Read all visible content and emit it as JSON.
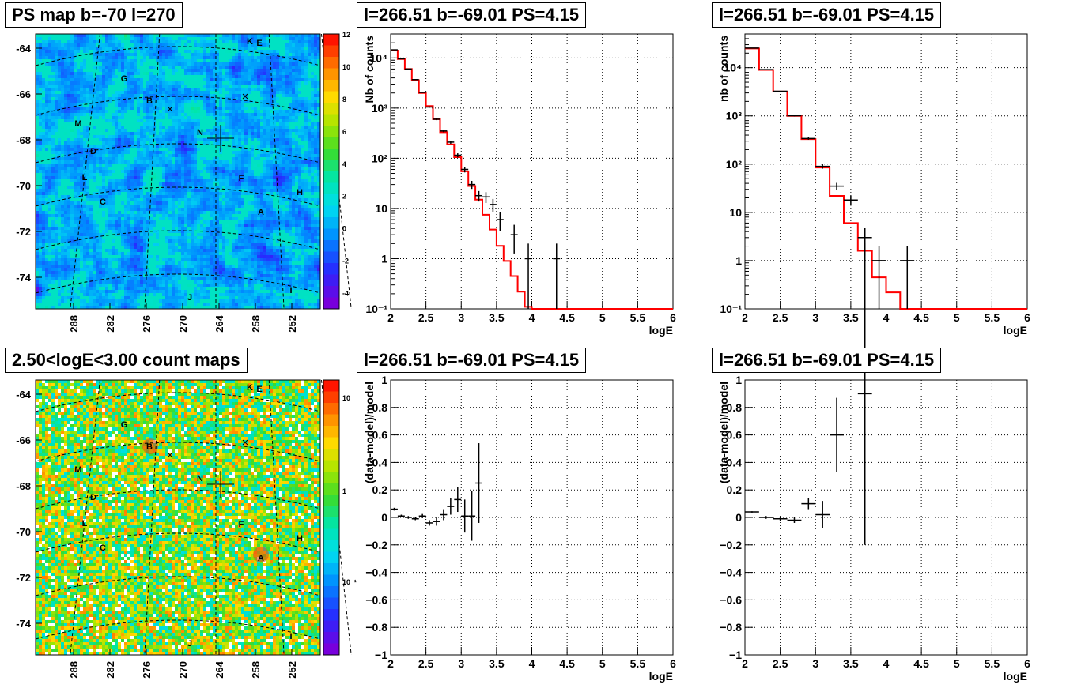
{
  "panels": {
    "map1_title": "PS map b=-70 l=270",
    "map2_title": "2.50<logE<3.00 count maps",
    "spec_title": "l=266.51 b=-69.01 PS=4.15"
  },
  "chart_data": [
    {
      "type": "heatmap",
      "title": "PS map b=-70 l=270",
      "colormap": "rainbow",
      "xticks": [
        "288",
        "282",
        "276",
        "270",
        "264",
        "258",
        "252"
      ],
      "yticks": [
        "-64",
        "-66",
        "-68",
        "-70",
        "-72",
        "-74"
      ],
      "zticks": [
        "-4",
        "-2",
        "0",
        "2",
        "4",
        "6",
        "8",
        "10",
        "12"
      ],
      "zlim": [
        -5,
        12
      ],
      "typical_value": 0.5,
      "source_labels": [
        "K",
        "E",
        "G",
        "B",
        "M",
        "N",
        "D",
        "L",
        "F",
        "H",
        "C",
        "A",
        "J",
        "I"
      ]
    },
    {
      "type": "heatmap",
      "title": "2.50<logE<3.00 count maps",
      "colormap": "rainbow",
      "scale": "log",
      "xticks": [
        "288",
        "282",
        "276",
        "270",
        "264",
        "258",
        "252"
      ],
      "yticks": [
        "-64",
        "-66",
        "-68",
        "-70",
        "-72",
        "-74"
      ],
      "zticks": [
        "10",
        "1",
        "10⁻¹"
      ],
      "source_labels": [
        "K",
        "E",
        "G",
        "B",
        "M",
        "N",
        "D",
        "L",
        "F",
        "H",
        "C",
        "A",
        "J",
        "I"
      ]
    },
    {
      "type": "line",
      "title": "l=266.51 b=-69.01 PS=4.15",
      "xlabel": "logE",
      "ylabel": "Nb of counts",
      "xlim": [
        2,
        6
      ],
      "ylim": [
        0.1,
        30000
      ],
      "yscale": "log",
      "grid": true,
      "xticks": [
        "2",
        "2.5",
        "3",
        "3.5",
        "4",
        "4.5",
        "5",
        "5.5",
        "6"
      ],
      "yticks": [
        "10⁻¹",
        "1",
        "10",
        "10²",
        "10³",
        "10⁴"
      ],
      "model_color": "#ff0000",
      "model": {
        "edges": [
          2,
          2.1,
          2.2,
          2.3,
          2.4,
          2.5,
          2.6,
          2.7,
          2.8,
          2.9,
          3.0,
          3.1,
          3.2,
          3.3,
          3.4,
          3.5,
          3.6,
          3.7,
          3.8,
          3.9,
          4.0,
          6.0
        ],
        "values": [
          14000,
          9500,
          6000,
          3600,
          2000,
          1100,
          600,
          330,
          190,
          105,
          55,
          28,
          15,
          7.5,
          3.8,
          1.8,
          0.9,
          0.45,
          0.22,
          0.11,
          0.08
        ]
      },
      "data": {
        "x": [
          2.05,
          2.15,
          2.25,
          2.35,
          2.45,
          2.55,
          2.65,
          2.75,
          2.85,
          2.95,
          3.05,
          3.15,
          3.25,
          3.35,
          3.45,
          3.55,
          3.75,
          3.95,
          4.35
        ],
        "y": [
          14500,
          9600,
          6000,
          3700,
          2050,
          1050,
          600,
          350,
          210,
          115,
          60,
          30,
          18,
          17,
          12,
          6,
          3,
          1,
          1
        ],
        "xerr": 0.05
      }
    },
    {
      "type": "line",
      "title": "l=266.51 b=-69.01 PS=4.15",
      "xlabel": "logE",
      "ylabel": "nb of counts",
      "xlim": [
        2,
        6
      ],
      "ylim": [
        0.1,
        50000
      ],
      "yscale": "log",
      "grid": true,
      "xticks": [
        "2",
        "2.5",
        "3",
        "3.5",
        "4",
        "4.5",
        "5",
        "5.5",
        "6"
      ],
      "yticks": [
        "10⁻¹",
        "1",
        "10",
        "10²",
        "10³",
        "10⁴"
      ],
      "model_color": "#ff0000",
      "model": {
        "edges": [
          2,
          2.2,
          2.4,
          2.6,
          2.8,
          3.0,
          3.2,
          3.4,
          3.6,
          3.8,
          4.0,
          4.2,
          6.0
        ],
        "values": [
          25000,
          9000,
          3200,
          1000,
          330,
          85,
          22,
          6,
          1.6,
          0.45,
          0.22,
          0.1
        ]
      },
      "data": {
        "x": [
          2.1,
          2.3,
          2.5,
          2.7,
          2.9,
          3.1,
          3.3,
          3.5,
          3.7,
          3.9,
          4.3
        ],
        "y": [
          25500,
          9100,
          3250,
          1010,
          340,
          90,
          35,
          18,
          3,
          1,
          1
        ],
        "xerr": 0.1
      }
    },
    {
      "type": "scatter",
      "title": "l=266.51 b=-69.01 PS=4.15",
      "xlabel": "logE",
      "ylabel": "(data-model)/model",
      "xlim": [
        2,
        6
      ],
      "ylim": [
        -1,
        1
      ],
      "grid": true,
      "xticks": [
        "2",
        "2.5",
        "3",
        "3.5",
        "4",
        "4.5",
        "5",
        "5.5",
        "6"
      ],
      "yticks": [
        "−1",
        "−0.8",
        "−0.6",
        "−0.4",
        "−0.2",
        "0",
        "0.2",
        "0.4",
        "0.6",
        "0.8",
        "1"
      ],
      "data": {
        "x": [
          2.05,
          2.15,
          2.25,
          2.35,
          2.45,
          2.55,
          2.65,
          2.75,
          2.85,
          2.95,
          3.05,
          3.15,
          3.25
        ],
        "y": [
          0.06,
          0.01,
          0.0,
          -0.01,
          0.01,
          -0.04,
          -0.03,
          0.02,
          0.08,
          0.13,
          0.01,
          0.01,
          0.25
        ],
        "yerr": [
          0.01,
          0.01,
          0.01,
          0.01,
          0.015,
          0.02,
          0.03,
          0.04,
          0.06,
          0.09,
          0.12,
          0.18,
          0.29
        ],
        "xerr": 0.05
      }
    },
    {
      "type": "scatter",
      "title": "l=266.51 b=-69.01 PS=4.15",
      "xlabel": "logE",
      "ylabel": "(data-model)/model",
      "xlim": [
        2,
        6
      ],
      "ylim": [
        -1,
        1
      ],
      "grid": true,
      "xticks": [
        "2",
        "2.5",
        "3",
        "3.5",
        "4",
        "4.5",
        "5",
        "5.5",
        "6"
      ],
      "yticks": [
        "−1",
        "−0.8",
        "−0.6",
        "−0.4",
        "−0.2",
        "0",
        "0.2",
        "0.4",
        "0.6",
        "0.8",
        "1"
      ],
      "data": {
        "x": [
          2.1,
          2.3,
          2.5,
          2.7,
          2.9,
          3.1,
          3.3,
          3.7
        ],
        "y": [
          0.04,
          0.0,
          -0.01,
          -0.02,
          0.1,
          0.02,
          0.6,
          0.9
        ],
        "yerr": [
          0.005,
          0.01,
          0.015,
          0.02,
          0.04,
          0.1,
          0.27,
          1.1
        ],
        "xerr": 0.1
      }
    }
  ]
}
